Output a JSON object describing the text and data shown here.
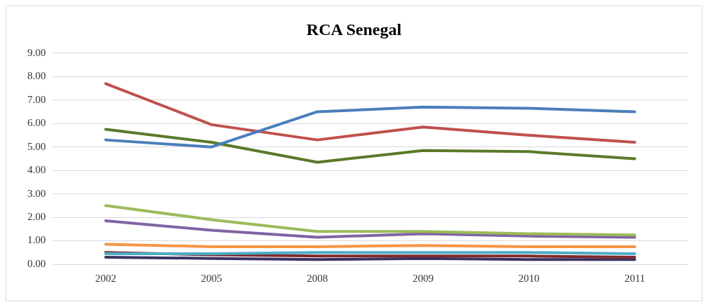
{
  "chart_data": {
    "type": "line",
    "title": "RCA Senegal",
    "categories": [
      "2002",
      "2005",
      "2008",
      "2009",
      "2010",
      "2011"
    ],
    "series": [
      {
        "color": "#4a7ebb",
        "values": [
          5.3,
          5.0,
          6.5,
          6.7,
          6.65,
          6.5
        ]
      },
      {
        "color": "#c0504d",
        "values": [
          7.7,
          5.95,
          5.3,
          5.85,
          5.5,
          5.2
        ]
      },
      {
        "color": "#5a7a2a",
        "values": [
          5.75,
          5.2,
          4.35,
          4.85,
          4.8,
          4.5
        ]
      },
      {
        "color": "#9bbb59",
        "values": [
          2.5,
          1.9,
          1.4,
          1.4,
          1.3,
          1.25
        ]
      },
      {
        "color": "#8064a2",
        "values": [
          1.85,
          1.45,
          1.15,
          1.3,
          1.2,
          1.15
        ]
      },
      {
        "color": "#f79646",
        "values": [
          0.85,
          0.75,
          0.75,
          0.8,
          0.75,
          0.75
        ]
      },
      {
        "color": "#4bacc6",
        "values": [
          0.45,
          0.45,
          0.5,
          0.5,
          0.5,
          0.45
        ]
      },
      {
        "color": "#7f2a2a",
        "values": [
          0.5,
          0.4,
          0.35,
          0.35,
          0.35,
          0.3
        ]
      },
      {
        "color": "#3b3262",
        "values": [
          0.3,
          0.25,
          0.2,
          0.25,
          0.2,
          0.2
        ]
      }
    ],
    "ylim": [
      0,
      9
    ],
    "yticks": [
      {
        "value": 0,
        "label": "0.00"
      },
      {
        "value": 1,
        "label": "1.00"
      },
      {
        "value": 2,
        "label": "2.00"
      },
      {
        "value": 3,
        "label": "3.00"
      },
      {
        "value": 4,
        "label": "4.00"
      },
      {
        "value": 5,
        "label": "5.00"
      },
      {
        "value": 6,
        "label": "6.00"
      },
      {
        "value": 7,
        "label": "7.00"
      },
      {
        "value": 8,
        "label": "8.00"
      },
      {
        "value": 9,
        "label": "9.00"
      }
    ],
    "grid": "y",
    "legend": false,
    "marker": "none",
    "line_style": "solid"
  }
}
